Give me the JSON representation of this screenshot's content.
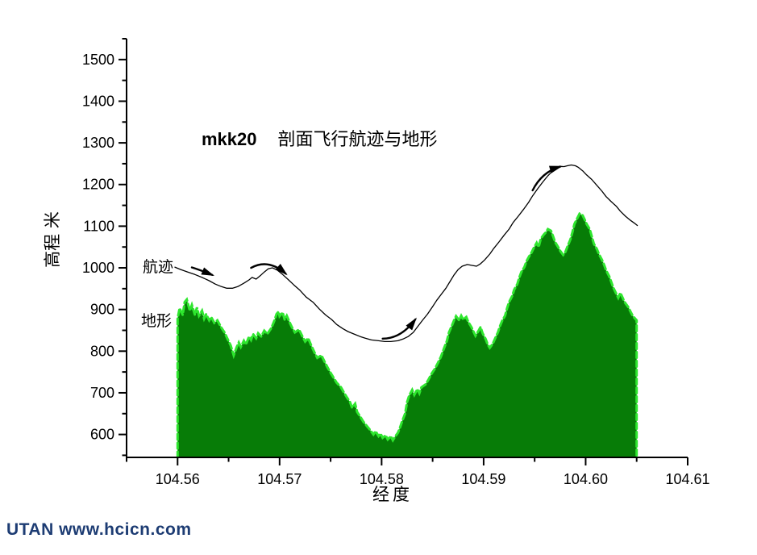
{
  "watermark": {
    "text": "UTAN  www.hcicn.com",
    "color": "#1d3c73"
  },
  "chart_data": {
    "type": "area",
    "title": {
      "prefix": "mkk20",
      "main": "剖面飞行航迹与地形"
    },
    "xlabel": "经度",
    "ylabel": "高程 米",
    "grid": false,
    "legend": "inline-annotations",
    "colors": {
      "terrain_fill": "#077c07",
      "terrain_edge": "#2ee62e",
      "track_line": "#000000",
      "ink": "#000000"
    },
    "x_axis": {
      "min": 104.555,
      "max": 104.61,
      "major_ticks": [
        104.56,
        104.57,
        104.58,
        104.59,
        104.6,
        104.61
      ],
      "major_tick_labels": [
        "104.56",
        "104.57",
        "104.58",
        "104.59",
        "104.60",
        "104.61"
      ],
      "minor_ticks": [
        104.555,
        104.565,
        104.575,
        104.585,
        104.595,
        104.605
      ]
    },
    "y_axis": {
      "min": 545,
      "max": 1550,
      "major_ticks": [
        600,
        700,
        800,
        900,
        1000,
        1100,
        1200,
        1300,
        1400,
        1500
      ],
      "major_tick_labels": [
        "600",
        "700",
        "800",
        "900",
        "1000",
        "1100",
        "1200",
        "1300",
        "1400",
        "1500"
      ],
      "minor_ticks": [
        550,
        650,
        750,
        850,
        950,
        1050,
        1150,
        1250,
        1350,
        1450,
        1550
      ]
    },
    "annotations": {
      "trajectory_label": {
        "text": "航迹",
        "anchor": [
          104.5575,
          1008
        ]
      },
      "terrain_label": {
        "text": "地形",
        "anchor": [
          104.5573,
          878
        ]
      }
    },
    "arrows": [
      {
        "start": [
          104.5614,
          1001
        ],
        "ctrl": [
          104.5622,
          995
        ],
        "end": [
          104.5634,
          983
        ]
      },
      {
        "start": [
          104.5672,
          1000
        ],
        "ctrl": [
          104.5689,
          1023
        ],
        "end": [
          104.5706,
          986
        ]
      },
      {
        "start": [
          104.5801,
          830
        ],
        "ctrl": [
          104.5819,
          830
        ],
        "end": [
          104.5833,
          876
        ]
      },
      {
        "start": [
          104.5948,
          1186
        ],
        "ctrl": [
          104.5957,
          1230
        ],
        "end": [
          104.5975,
          1243
        ]
      }
    ],
    "series": [
      {
        "name": "地形",
        "type": "area",
        "points": [
          [
            104.56,
            878
          ],
          [
            104.5602,
            903
          ],
          [
            104.5605,
            887
          ],
          [
            104.5607,
            918
          ],
          [
            104.5609,
            924
          ],
          [
            104.5612,
            897
          ],
          [
            104.5614,
            911
          ],
          [
            104.5617,
            887
          ],
          [
            104.5619,
            905
          ],
          [
            104.5621,
            885
          ],
          [
            104.5624,
            897
          ],
          [
            104.5626,
            878
          ],
          [
            104.5628,
            889
          ],
          [
            104.5631,
            874
          ],
          [
            104.5633,
            882
          ],
          [
            104.5636,
            868
          ],
          [
            104.5639,
            874
          ],
          [
            104.5643,
            856
          ],
          [
            104.5646,
            845
          ],
          [
            104.5649,
            829
          ],
          [
            104.5652,
            814
          ],
          [
            104.5655,
            790
          ],
          [
            104.5658,
            810
          ],
          [
            104.566,
            821
          ],
          [
            104.5662,
            810
          ],
          [
            104.5665,
            825
          ],
          [
            104.5667,
            816
          ],
          [
            104.567,
            835
          ],
          [
            104.5672,
            827
          ],
          [
            104.5674,
            841
          ],
          [
            104.5677,
            831
          ],
          [
            104.5679,
            843
          ],
          [
            104.5682,
            835
          ],
          [
            104.5685,
            849
          ],
          [
            104.5688,
            841
          ],
          [
            104.5692,
            856
          ],
          [
            104.5695,
            874
          ],
          [
            104.5697,
            889
          ],
          [
            104.5699,
            895
          ],
          [
            104.57,
            884
          ],
          [
            104.5703,
            893
          ],
          [
            104.5705,
            876
          ],
          [
            104.5707,
            885
          ],
          [
            104.571,
            868
          ],
          [
            104.5712,
            858
          ],
          [
            104.5715,
            845
          ],
          [
            104.5719,
            852
          ],
          [
            104.5722,
            837
          ],
          [
            104.5725,
            823
          ],
          [
            104.5728,
            831
          ],
          [
            104.5731,
            814
          ],
          [
            104.5734,
            798
          ],
          [
            104.5737,
            784
          ],
          [
            104.5741,
            790
          ],
          [
            104.5744,
            775
          ],
          [
            104.5747,
            761
          ],
          [
            104.575,
            748
          ],
          [
            104.5753,
            736
          ],
          [
            104.5756,
            724
          ],
          [
            104.576,
            714
          ],
          [
            104.5763,
            701
          ],
          [
            104.5766,
            689
          ],
          [
            104.5769,
            678
          ],
          [
            104.5771,
            664
          ],
          [
            104.5774,
            674
          ],
          [
            104.5776,
            654
          ],
          [
            104.5779,
            643
          ],
          [
            104.5782,
            631
          ],
          [
            104.5786,
            619
          ],
          [
            104.5789,
            610
          ],
          [
            104.5792,
            600
          ],
          [
            104.5794,
            608
          ],
          [
            104.5797,
            596
          ],
          [
            104.5799,
            602
          ],
          [
            104.5801,
            592
          ],
          [
            104.5804,
            598
          ],
          [
            104.5806,
            588
          ],
          [
            104.5809,
            596
          ],
          [
            104.5811,
            586
          ],
          [
            104.5813,
            594
          ],
          [
            104.5816,
            604
          ],
          [
            104.5818,
            616
          ],
          [
            104.582,
            631
          ],
          [
            104.5823,
            650
          ],
          [
            104.5825,
            678
          ],
          [
            104.5827,
            693
          ],
          [
            104.583,
            707
          ],
          [
            104.5832,
            695
          ],
          [
            104.5835,
            709
          ],
          [
            104.5837,
            699
          ],
          [
            104.5839,
            713
          ],
          [
            104.5843,
            720
          ],
          [
            104.5846,
            732
          ],
          [
            104.5849,
            746
          ],
          [
            104.5852,
            757
          ],
          [
            104.5855,
            771
          ],
          [
            104.5858,
            786
          ],
          [
            104.5861,
            806
          ],
          [
            104.5864,
            825
          ],
          [
            104.5866,
            845
          ],
          [
            104.5869,
            862
          ],
          [
            104.5871,
            874
          ],
          [
            104.5873,
            884
          ],
          [
            104.5876,
            874
          ],
          [
            104.5878,
            885
          ],
          [
            104.588,
            876
          ],
          [
            104.5883,
            882
          ],
          [
            104.5885,
            870
          ],
          [
            104.5888,
            858
          ],
          [
            104.589,
            847
          ],
          [
            104.5892,
            837
          ],
          [
            104.5895,
            849
          ],
          [
            104.5897,
            858
          ],
          [
            104.5899,
            843
          ],
          [
            104.5902,
            829
          ],
          [
            104.5904,
            816
          ],
          [
            104.5906,
            808
          ],
          [
            104.5909,
            818
          ],
          [
            104.5911,
            829
          ],
          [
            104.5914,
            845
          ],
          [
            104.5916,
            860
          ],
          [
            104.5918,
            872
          ],
          [
            104.5921,
            885
          ],
          [
            104.5923,
            903
          ],
          [
            104.5925,
            918
          ],
          [
            104.5928,
            932
          ],
          [
            104.593,
            948
          ],
          [
            104.5933,
            961
          ],
          [
            104.5935,
            977
          ],
          [
            104.5937,
            990
          ],
          [
            104.594,
            1002
          ],
          [
            104.5942,
            1016
          ],
          [
            104.5944,
            1025
          ],
          [
            104.5947,
            1037
          ],
          [
            104.5949,
            1047
          ],
          [
            104.5952,
            1060
          ],
          [
            104.5954,
            1050
          ],
          [
            104.5956,
            1070
          ],
          [
            104.5959,
            1080
          ],
          [
            104.5961,
            1085
          ],
          [
            104.5963,
            1093
          ],
          [
            104.5966,
            1089
          ],
          [
            104.5968,
            1076
          ],
          [
            104.597,
            1062
          ],
          [
            104.5973,
            1050
          ],
          [
            104.5975,
            1041
          ],
          [
            104.5978,
            1031
          ],
          [
            104.598,
            1037
          ],
          [
            104.5982,
            1050
          ],
          [
            104.5985,
            1068
          ],
          [
            104.5987,
            1085
          ],
          [
            104.5989,
            1105
          ],
          [
            104.5992,
            1120
          ],
          [
            104.5994,
            1130
          ],
          [
            104.5997,
            1126
          ],
          [
            104.5999,
            1116
          ],
          [
            104.6001,
            1105
          ],
          [
            104.6004,
            1093
          ],
          [
            104.6006,
            1076
          ],
          [
            104.6008,
            1058
          ],
          [
            104.6011,
            1045
          ],
          [
            104.6013,
            1033
          ],
          [
            104.6016,
            1019
          ],
          [
            104.6018,
            1008
          ],
          [
            104.602,
            994
          ],
          [
            104.6023,
            980
          ],
          [
            104.6025,
            967
          ],
          [
            104.6027,
            953
          ],
          [
            104.603,
            938
          ],
          [
            104.6032,
            928
          ],
          [
            104.6034,
            940
          ],
          [
            104.6037,
            924
          ],
          [
            104.6039,
            915
          ],
          [
            104.6042,
            905
          ],
          [
            104.6044,
            895
          ],
          [
            104.6046,
            885
          ],
          [
            104.605,
            874
          ]
        ]
      },
      {
        "name": "航迹",
        "type": "line",
        "points": [
          [
            104.5597,
            1002
          ],
          [
            104.5603,
            996
          ],
          [
            104.561,
            990
          ],
          [
            104.5617,
            984
          ],
          [
            104.5624,
            977
          ],
          [
            104.5631,
            969
          ],
          [
            104.5637,
            961
          ],
          [
            104.5643,
            955
          ],
          [
            104.5648,
            951
          ],
          [
            104.5654,
            951
          ],
          [
            104.5659,
            955
          ],
          [
            104.5665,
            963
          ],
          [
            104.567,
            971
          ],
          [
            104.5673,
            977
          ],
          [
            104.5677,
            973
          ],
          [
            104.5681,
            981
          ],
          [
            104.5685,
            990
          ],
          [
            104.5689,
            998
          ],
          [
            104.5693,
            1000
          ],
          [
            104.5698,
            994
          ],
          [
            104.5703,
            984
          ],
          [
            104.5708,
            973
          ],
          [
            104.5714,
            959
          ],
          [
            104.572,
            946
          ],
          [
            104.5726,
            930
          ],
          [
            104.5733,
            917
          ],
          [
            104.5739,
            901
          ],
          [
            104.5745,
            887
          ],
          [
            104.5751,
            876
          ],
          [
            104.5756,
            864
          ],
          [
            104.5762,
            854
          ],
          [
            104.5767,
            847
          ],
          [
            104.5773,
            841
          ],
          [
            104.5779,
            835
          ],
          [
            104.5784,
            831
          ],
          [
            104.579,
            827
          ],
          [
            104.5797,
            825
          ],
          [
            104.5803,
            823
          ],
          [
            104.5809,
            823
          ],
          [
            104.5816,
            825
          ],
          [
            104.5821,
            829
          ],
          [
            104.5826,
            835
          ],
          [
            104.5831,
            845
          ],
          [
            104.5835,
            858
          ],
          [
            104.584,
            874
          ],
          [
            104.5845,
            889
          ],
          [
            104.585,
            907
          ],
          [
            104.5854,
            922
          ],
          [
            104.5859,
            938
          ],
          [
            104.5863,
            951
          ],
          [
            104.5867,
            967
          ],
          [
            104.5871,
            983
          ],
          [
            104.5875,
            996
          ],
          [
            104.5879,
            1004
          ],
          [
            104.5884,
            1008
          ],
          [
            104.5888,
            1006
          ],
          [
            104.5893,
            1004
          ],
          [
            104.5897,
            1010
          ],
          [
            104.5901,
            1019
          ],
          [
            104.5906,
            1033
          ],
          [
            104.591,
            1047
          ],
          [
            104.5915,
            1062
          ],
          [
            104.592,
            1078
          ],
          [
            104.5925,
            1093
          ],
          [
            104.5929,
            1109
          ],
          [
            104.5934,
            1124
          ],
          [
            104.5939,
            1140
          ],
          [
            104.5944,
            1157
          ],
          [
            104.5948,
            1173
          ],
          [
            104.5953,
            1190
          ],
          [
            104.5958,
            1206
          ],
          [
            104.5963,
            1221
          ],
          [
            104.5967,
            1231
          ],
          [
            104.5971,
            1239
          ],
          [
            104.5975,
            1243
          ],
          [
            104.5979,
            1243
          ],
          [
            104.5982,
            1245
          ],
          [
            104.5986,
            1247
          ],
          [
            104.599,
            1245
          ],
          [
            104.5993,
            1241
          ],
          [
            104.5997,
            1233
          ],
          [
            104.6001,
            1223
          ],
          [
            104.6006,
            1212
          ],
          [
            104.6011,
            1198
          ],
          [
            104.6016,
            1184
          ],
          [
            104.602,
            1171
          ],
          [
            104.6025,
            1159
          ],
          [
            104.603,
            1148
          ],
          [
            104.6034,
            1136
          ],
          [
            104.6039,
            1124
          ],
          [
            104.6044,
            1114
          ],
          [
            104.6048,
            1107
          ],
          [
            104.6051,
            1101
          ]
        ]
      }
    ]
  }
}
